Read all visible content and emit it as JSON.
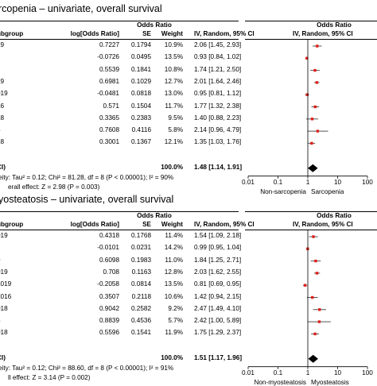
{
  "chart_data": [
    {
      "type": "forest",
      "title": "rcopenia – univariate, overall survival",
      "header_group": "Odds Ratio",
      "columns": [
        "ubgroup",
        "log[Odds Ratio]",
        "SE",
        "Weight",
        "IV, Random, 95% CI"
      ],
      "plot_header_group": "Odds Ratio",
      "plot_header": "IV, Random, 95% CI",
      "rows": [
        {
          "study": "19",
          "log_or": "0.7227",
          "se": "0.1794",
          "weight": "10.9%",
          "ci_text": "2.06 [1.45, 2.93]",
          "or": 2.06,
          "lo": 1.45,
          "hi": 2.93
        },
        {
          "study": "",
          "log_or": "-0.0726",
          "se": "0.0495",
          "weight": "13.5%",
          "ci_text": "0.93 [0.84, 1.02]",
          "or": 0.93,
          "lo": 0.84,
          "hi": 1.02
        },
        {
          "study": "",
          "log_or": "0.5539",
          "se": "0.1841",
          "weight": "10.8%",
          "ci_text": "1.74 [1.21, 2.50]",
          "or": 1.74,
          "lo": 1.21,
          "hi": 2.5
        },
        {
          "study": "19",
          "log_or": "0.6981",
          "se": "0.1029",
          "weight": "12.7%",
          "ci_text": "2.01 [1.64, 2.46]",
          "or": 2.01,
          "lo": 1.64,
          "hi": 2.46
        },
        {
          "study": "019",
          "log_or": "-0.0481",
          "se": "0.0818",
          "weight": "13.0%",
          "ci_text": "0.95 [0.81, 1.12]",
          "or": 0.95,
          "lo": 0.81,
          "hi": 1.12
        },
        {
          "study": "16",
          "log_or": "0.571",
          "se": "0.1504",
          "weight": "11.7%",
          "ci_text": "1.77 [1.32, 2.38]",
          "or": 1.77,
          "lo": 1.32,
          "hi": 2.38
        },
        {
          "study": "18",
          "log_or": "0.3365",
          "se": "0.2383",
          "weight": "9.5%",
          "ci_text": "1.40 [0.88, 2.23]",
          "or": 1.4,
          "lo": 0.88,
          "hi": 2.23
        },
        {
          "study": "3",
          "log_or": "0.7608",
          "se": "0.4116",
          "weight": "5.8%",
          "ci_text": "2.14 [0.96, 4.79]",
          "or": 2.14,
          "lo": 0.96,
          "hi": 4.79
        },
        {
          "study": "18",
          "log_or": "0.3001",
          "se": "0.1367",
          "weight": "12.1%",
          "ci_text": "1.35 [1.03, 1.76]",
          "or": 1.35,
          "lo": 1.03,
          "hi": 1.76
        }
      ],
      "total": {
        "label": "CI)",
        "weight": "100.0%",
        "ci_text": "1.48 [1.14, 1.91]",
        "or": 1.48,
        "lo": 1.14,
        "hi": 1.91
      },
      "heterogeneity": "eity: Tau² = 0.12; Chi² = 81.28, df = 8 (P < 0.00001); I² = 90%",
      "overall_effect": "erall effect: Z = 2.98 (P = 0.003)",
      "x_ticks": [
        "0.01",
        "0.1",
        "1",
        "10",
        "100"
      ],
      "x_tick_values": [
        0.01,
        0.1,
        1,
        10,
        100
      ],
      "x_scale": "log",
      "favours_left": "Non-sarcopenia",
      "favours_right": "Sarcopenia",
      "marker_color": "#e0201a"
    },
    {
      "type": "forest",
      "title": "yosteatosis – univariate, overall survival",
      "header_group": "Odds Ratio",
      "columns": [
        "ubgroup",
        "log[Odds Ratio]",
        "SE",
        "Weight",
        "IV, Random, 95% CI"
      ],
      "plot_header_group": "Odds Ratio",
      "plot_header": "IV, Random, 95% CI",
      "rows": [
        {
          "study": "019",
          "log_or": "0.4318",
          "se": "0.1768",
          "weight": "11.4%",
          "ci_text": "1.54 [1.09, 2.18]",
          "or": 1.54,
          "lo": 1.09,
          "hi": 2.18
        },
        {
          "study": "",
          "log_or": "-0.0101",
          "se": "0.0231",
          "weight": "14.2%",
          "ci_text": "0.99 [0.95, 1.04]",
          "or": 0.99,
          "lo": 0.95,
          "hi": 1.04
        },
        {
          "study": "9",
          "log_or": "0.6098",
          "se": "0.1983",
          "weight": "11.0%",
          "ci_text": "1.84 [1.25, 2.71]",
          "or": 1.84,
          "lo": 1.25,
          "hi": 2.71
        },
        {
          "study": "019",
          "log_or": "0.708",
          "se": "0.1163",
          "weight": "12.8%",
          "ci_text": "2.03 [1.62, 2.55]",
          "or": 2.03,
          "lo": 1.62,
          "hi": 2.55
        },
        {
          "study": "2019",
          "log_or": "-0.2058",
          "se": "0.0814",
          "weight": "13.5%",
          "ci_text": "0.81 [0.69, 0.95]",
          "or": 0.81,
          "lo": 0.69,
          "hi": 0.95
        },
        {
          "study": "2016",
          "log_or": "0.3507",
          "se": "0.2118",
          "weight": "10.6%",
          "ci_text": "1.42 [0.94, 2.15]",
          "or": 1.42,
          "lo": 0.94,
          "hi": 2.15
        },
        {
          "study": "018",
          "log_or": "0.9042",
          "se": "0.2582",
          "weight": "9.2%",
          "ci_text": "2.47 [1.49, 4.10]",
          "or": 2.47,
          "lo": 1.49,
          "hi": 4.1
        },
        {
          "study": "3",
          "log_or": "0.8839",
          "se": "0.4536",
          "weight": "5.7%",
          "ci_text": "2.42 [1.00, 5.89]",
          "or": 2.42,
          "lo": 1.0,
          "hi": 5.89
        },
        {
          "study": "018",
          "log_or": "0.5596",
          "se": "0.1541",
          "weight": "11.9%",
          "ci_text": "1.75 [1.29, 2.37]",
          "or": 1.75,
          "lo": 1.29,
          "hi": 2.37
        }
      ],
      "total": {
        "label": "CI)",
        "weight": "100.0%",
        "ci_text": "1.51 [1.17, 1.96]",
        "or": 1.51,
        "lo": 1.17,
        "hi": 1.96
      },
      "heterogeneity": "eity: Tau² = 0.12; Chi² = 88.60, df = 8 (P < 0.00001); I² = 91%",
      "overall_effect": "ll effect: Z = 3.14 (P = 0.002)",
      "x_ticks": [
        "0.01",
        "0.1",
        "1",
        "10",
        "100"
      ],
      "x_tick_values": [
        0.01,
        0.1,
        1,
        10,
        100
      ],
      "x_scale": "log",
      "favours_left": "Non-myosteatosis",
      "favours_right": "Myosteatosis",
      "marker_color": "#e0201a"
    }
  ]
}
